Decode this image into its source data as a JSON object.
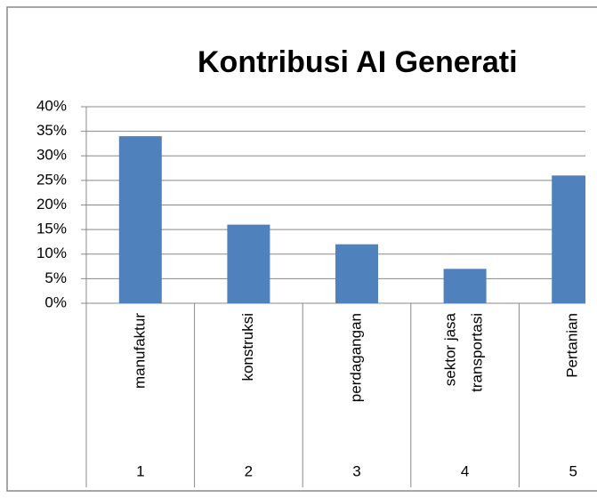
{
  "chart_data": {
    "type": "bar",
    "title": "Kontribusi AI Generati",
    "categories": [
      "manufaktur",
      "konstruksi",
      "perdagangan",
      "sektor jasa transportasi",
      "Pertanian"
    ],
    "category_numbers": [
      1,
      2,
      3,
      4,
      5
    ],
    "values": [
      34,
      16,
      12,
      7,
      26
    ],
    "color": "#4f81bd",
    "ylim": [
      0,
      40
    ],
    "yticks": [
      {
        "value": 0,
        "label": "0%"
      },
      {
        "value": 5,
        "label": "5%"
      },
      {
        "value": 10,
        "label": "10%"
      },
      {
        "value": 15,
        "label": "15%"
      },
      {
        "value": 20,
        "label": "20%"
      },
      {
        "value": 25,
        "label": "25%"
      },
      {
        "value": 30,
        "label": "30%"
      },
      {
        "value": 35,
        "label": "35%"
      },
      {
        "value": 40,
        "label": "40%"
      }
    ],
    "grid": true
  }
}
